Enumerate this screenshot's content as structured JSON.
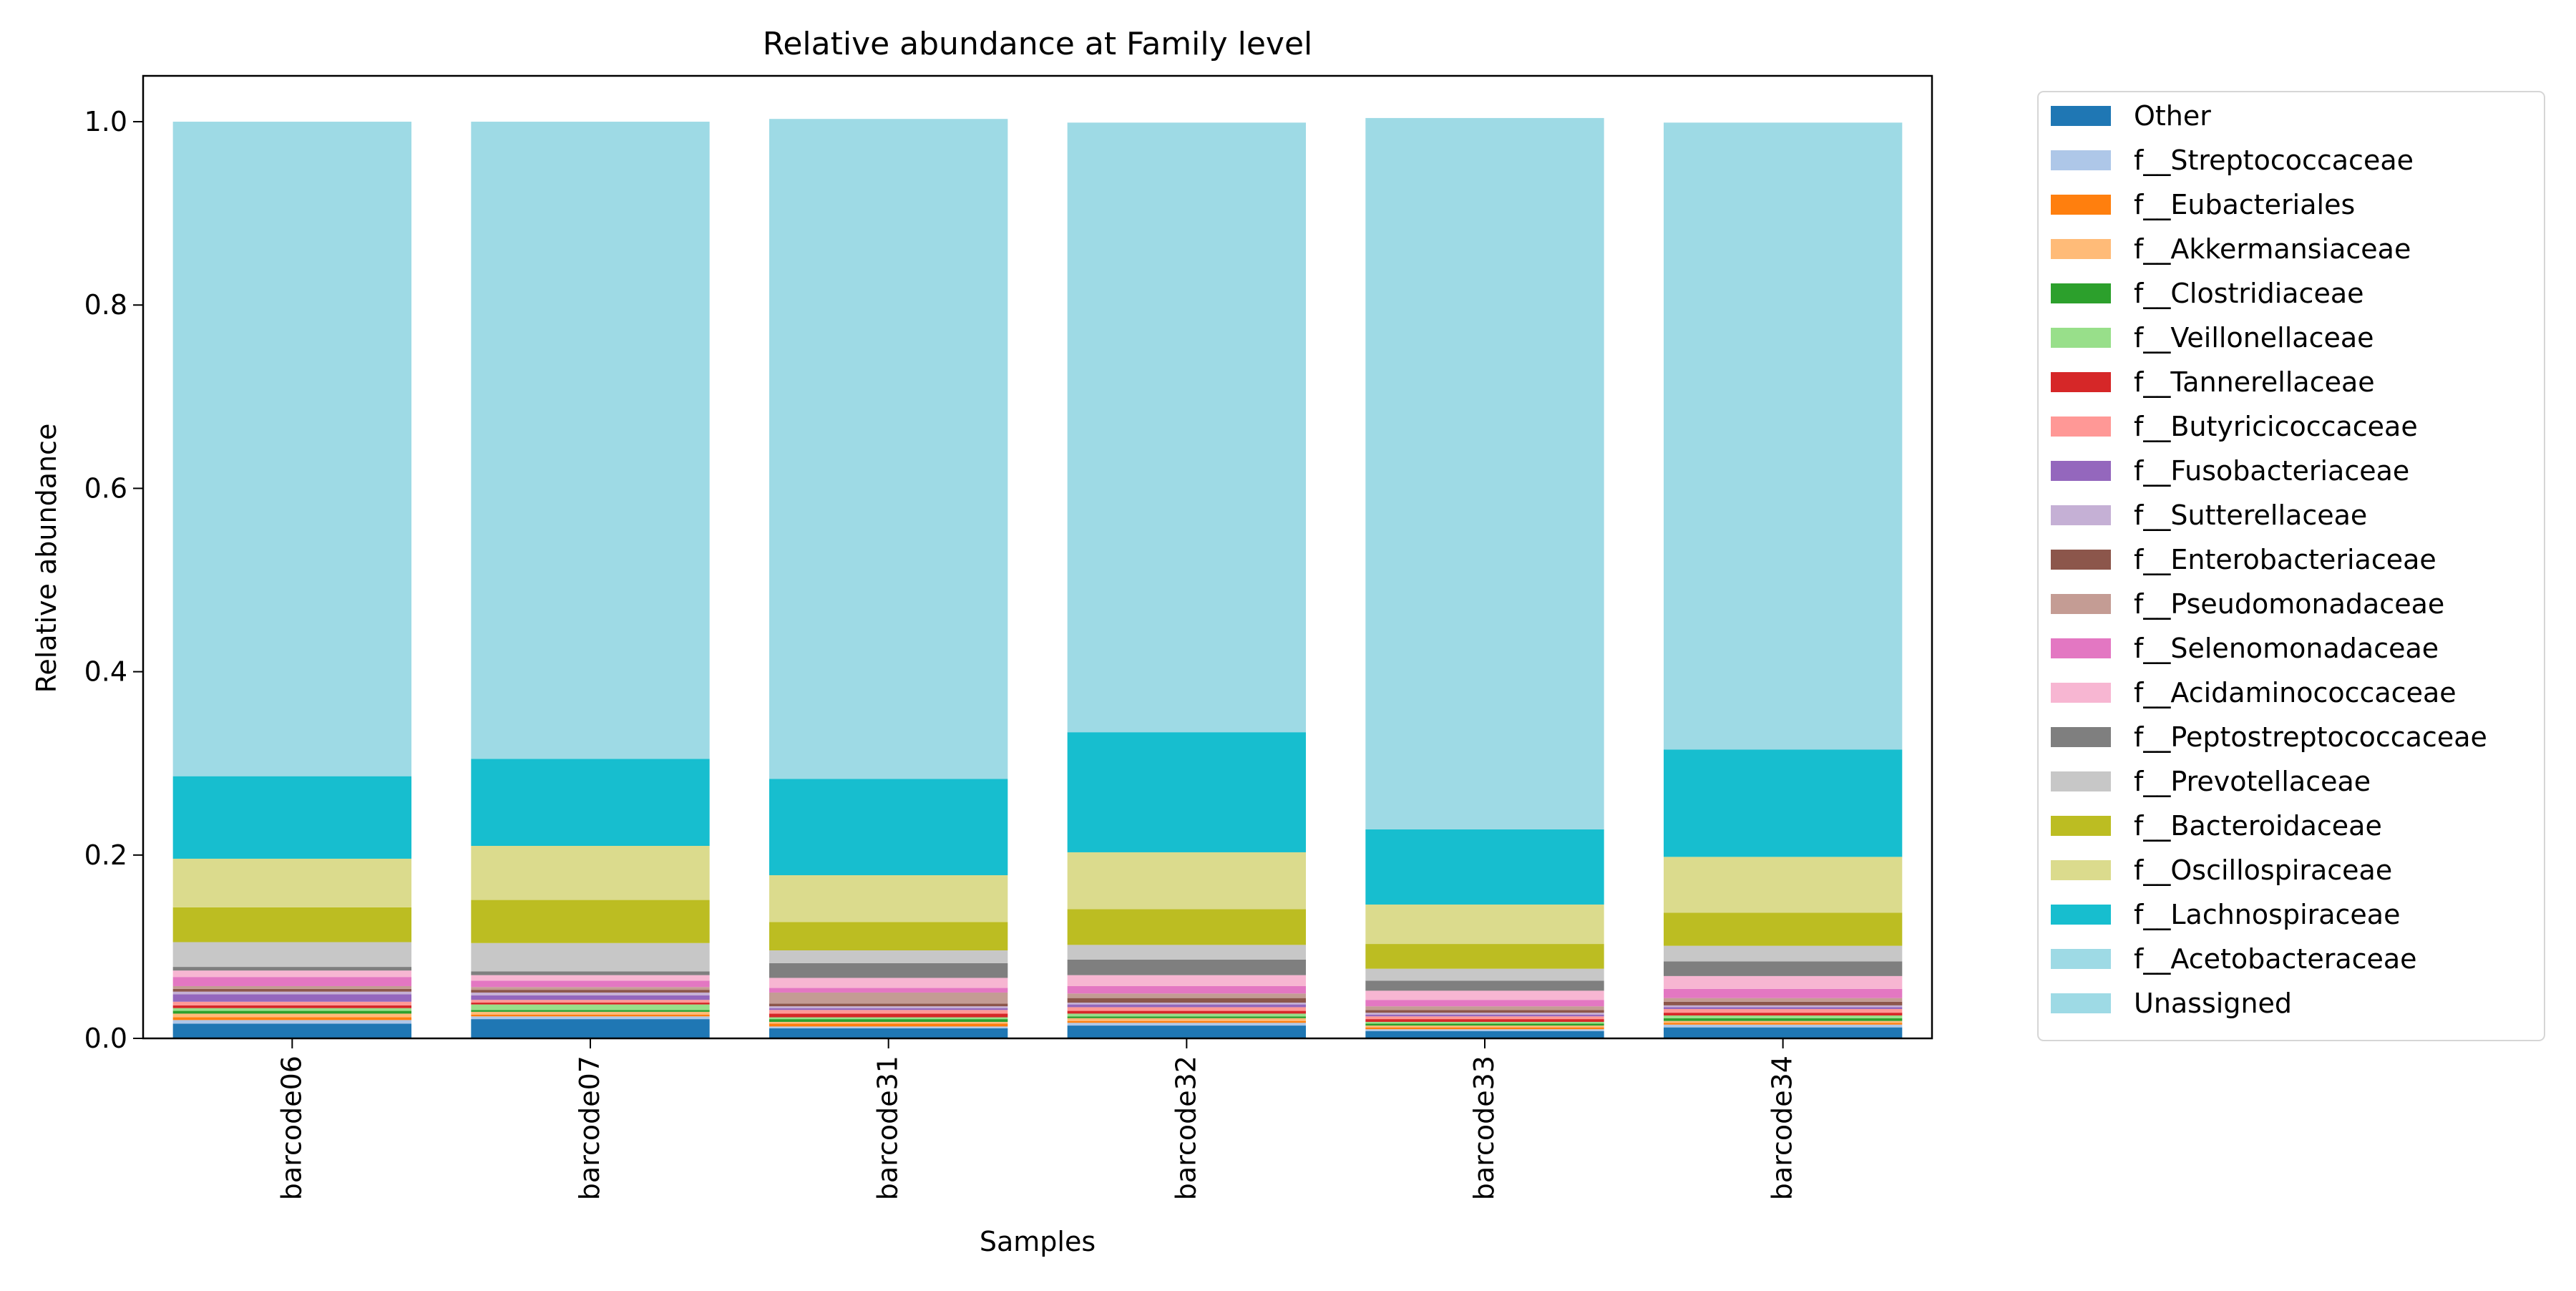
{
  "chart_data": {
    "type": "bar",
    "stacked": true,
    "title": "Relative abundance at Family level",
    "xlabel": "Samples",
    "ylabel": "Relative abundance",
    "ylim": [
      0,
      1.05
    ],
    "yticks": [
      0.0,
      0.2,
      0.4,
      0.6,
      0.8,
      1.0
    ],
    "ytick_labels": [
      "0.0",
      "0.2",
      "0.4",
      "0.6",
      "0.8",
      "1.0"
    ],
    "legend_position": "outside-right",
    "categories": [
      "barcode06",
      "barcode07",
      "barcode31",
      "barcode32",
      "barcode33",
      "barcode34"
    ],
    "series": [
      {
        "name": "Other",
        "color": "#1f77b4",
        "values": [
          0.016,
          0.021,
          0.011,
          0.014,
          0.008,
          0.012
        ]
      },
      {
        "name": "f__Streptococcaceae",
        "color": "#aec7e8",
        "values": [
          0.004,
          0.003,
          0.002,
          0.003,
          0.002,
          0.003
        ]
      },
      {
        "name": "f__Eubacteriales",
        "color": "#ff7f0e",
        "values": [
          0.003,
          0.002,
          0.003,
          0.002,
          0.002,
          0.002
        ]
      },
      {
        "name": "f__Akkermansiaceae",
        "color": "#ffbb78",
        "values": [
          0.004,
          0.003,
          0.002,
          0.003,
          0.002,
          0.002
        ]
      },
      {
        "name": "f__Clostridiaceae",
        "color": "#2ca02c",
        "values": [
          0.003,
          0.002,
          0.003,
          0.002,
          0.002,
          0.003
        ]
      },
      {
        "name": "f__Veillonellaceae",
        "color": "#98df8a",
        "values": [
          0.003,
          0.006,
          0.002,
          0.003,
          0.002,
          0.003
        ]
      },
      {
        "name": "f__Tannerellaceae",
        "color": "#d62728",
        "values": [
          0.003,
          0.002,
          0.004,
          0.003,
          0.003,
          0.003
        ]
      },
      {
        "name": "f__Butyricicoccaceae",
        "color": "#ff9896",
        "values": [
          0.004,
          0.003,
          0.004,
          0.004,
          0.003,
          0.004
        ]
      },
      {
        "name": "f__Fusobacteriaceae",
        "color": "#9467bd",
        "values": [
          0.008,
          0.005,
          0.002,
          0.003,
          0.002,
          0.002
        ]
      },
      {
        "name": "f__Sutterellaceae",
        "color": "#c5b0d5",
        "values": [
          0.003,
          0.003,
          0.002,
          0.002,
          0.002,
          0.002
        ]
      },
      {
        "name": "f__Enterobacteriaceae",
        "color": "#8c564b",
        "values": [
          0.003,
          0.003,
          0.003,
          0.005,
          0.003,
          0.004
        ]
      },
      {
        "name": "f__Pseudomonadaceae",
        "color": "#c49c94",
        "values": [
          0.003,
          0.003,
          0.012,
          0.005,
          0.004,
          0.004
        ]
      },
      {
        "name": "f__Selenomonadaceae",
        "color": "#e377c2",
        "values": [
          0.01,
          0.007,
          0.005,
          0.008,
          0.007,
          0.01
        ]
      },
      {
        "name": "f__Acidaminococcaceae",
        "color": "#f7b6d2",
        "values": [
          0.007,
          0.006,
          0.011,
          0.012,
          0.01,
          0.014
        ]
      },
      {
        "name": "f__Peptostreptococcaceae",
        "color": "#7f7f7f",
        "values": [
          0.004,
          0.004,
          0.016,
          0.017,
          0.011,
          0.016
        ]
      },
      {
        "name": "f__Prevotellaceae",
        "color": "#c7c7c7",
        "values": [
          0.027,
          0.031,
          0.014,
          0.016,
          0.013,
          0.017
        ]
      },
      {
        "name": "f__Bacteroidaceae",
        "color": "#bcbd22",
        "values": [
          0.038,
          0.047,
          0.031,
          0.039,
          0.027,
          0.036
        ]
      },
      {
        "name": "f__Oscillospiraceae",
        "color": "#dbdb8d",
        "values": [
          0.053,
          0.059,
          0.051,
          0.062,
          0.043,
          0.061
        ]
      },
      {
        "name": "f__Lachnospiraceae",
        "color": "#17becf",
        "values": [
          0.09,
          0.095,
          0.105,
          0.131,
          0.082,
          0.117
        ]
      },
      {
        "name": "f__Acetobacteraceae",
        "color": "#9edae5",
        "values": [
          0.0,
          0.0,
          0.0,
          0.0,
          0.0,
          0.0
        ]
      },
      {
        "name": "Unassigned",
        "color": "#9edae5",
        "values": [
          0.714,
          0.695,
          0.72,
          0.665,
          0.776,
          0.684
        ]
      }
    ]
  }
}
